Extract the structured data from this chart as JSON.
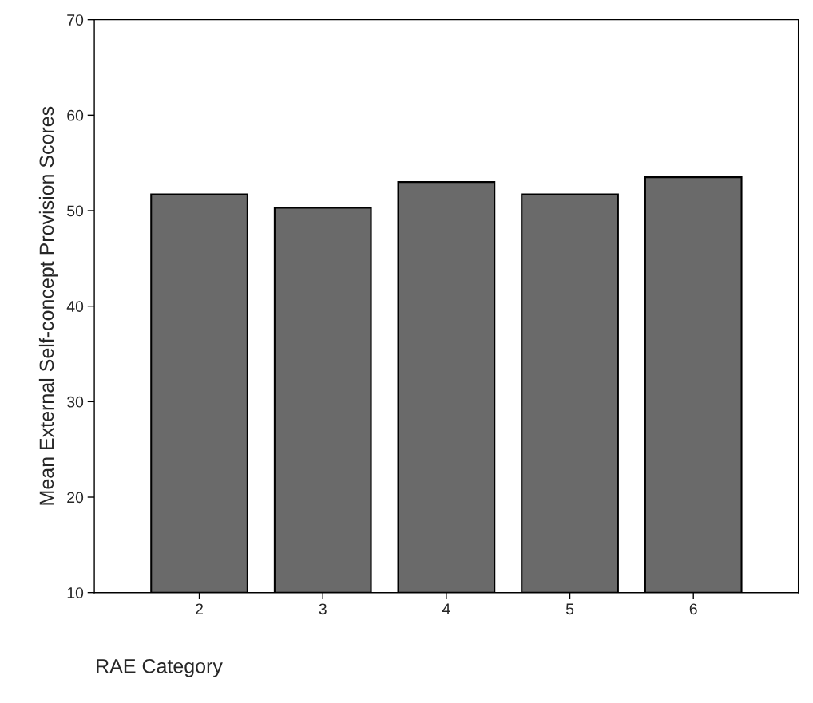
{
  "chart_data": {
    "type": "bar",
    "xlabel": "RAE Category",
    "ylabel": "Mean External Self-concept Provision Scores",
    "categories": [
      "2",
      "3",
      "4",
      "5",
      "6"
    ],
    "values": [
      51.7,
      50.3,
      53.0,
      51.7,
      53.5
    ],
    "color": "#6a6a6a",
    "ylim": [
      10,
      70
    ],
    "yticks": [
      10,
      20,
      30,
      40,
      50,
      60,
      70
    ],
    "grid": false,
    "legend": false
  }
}
